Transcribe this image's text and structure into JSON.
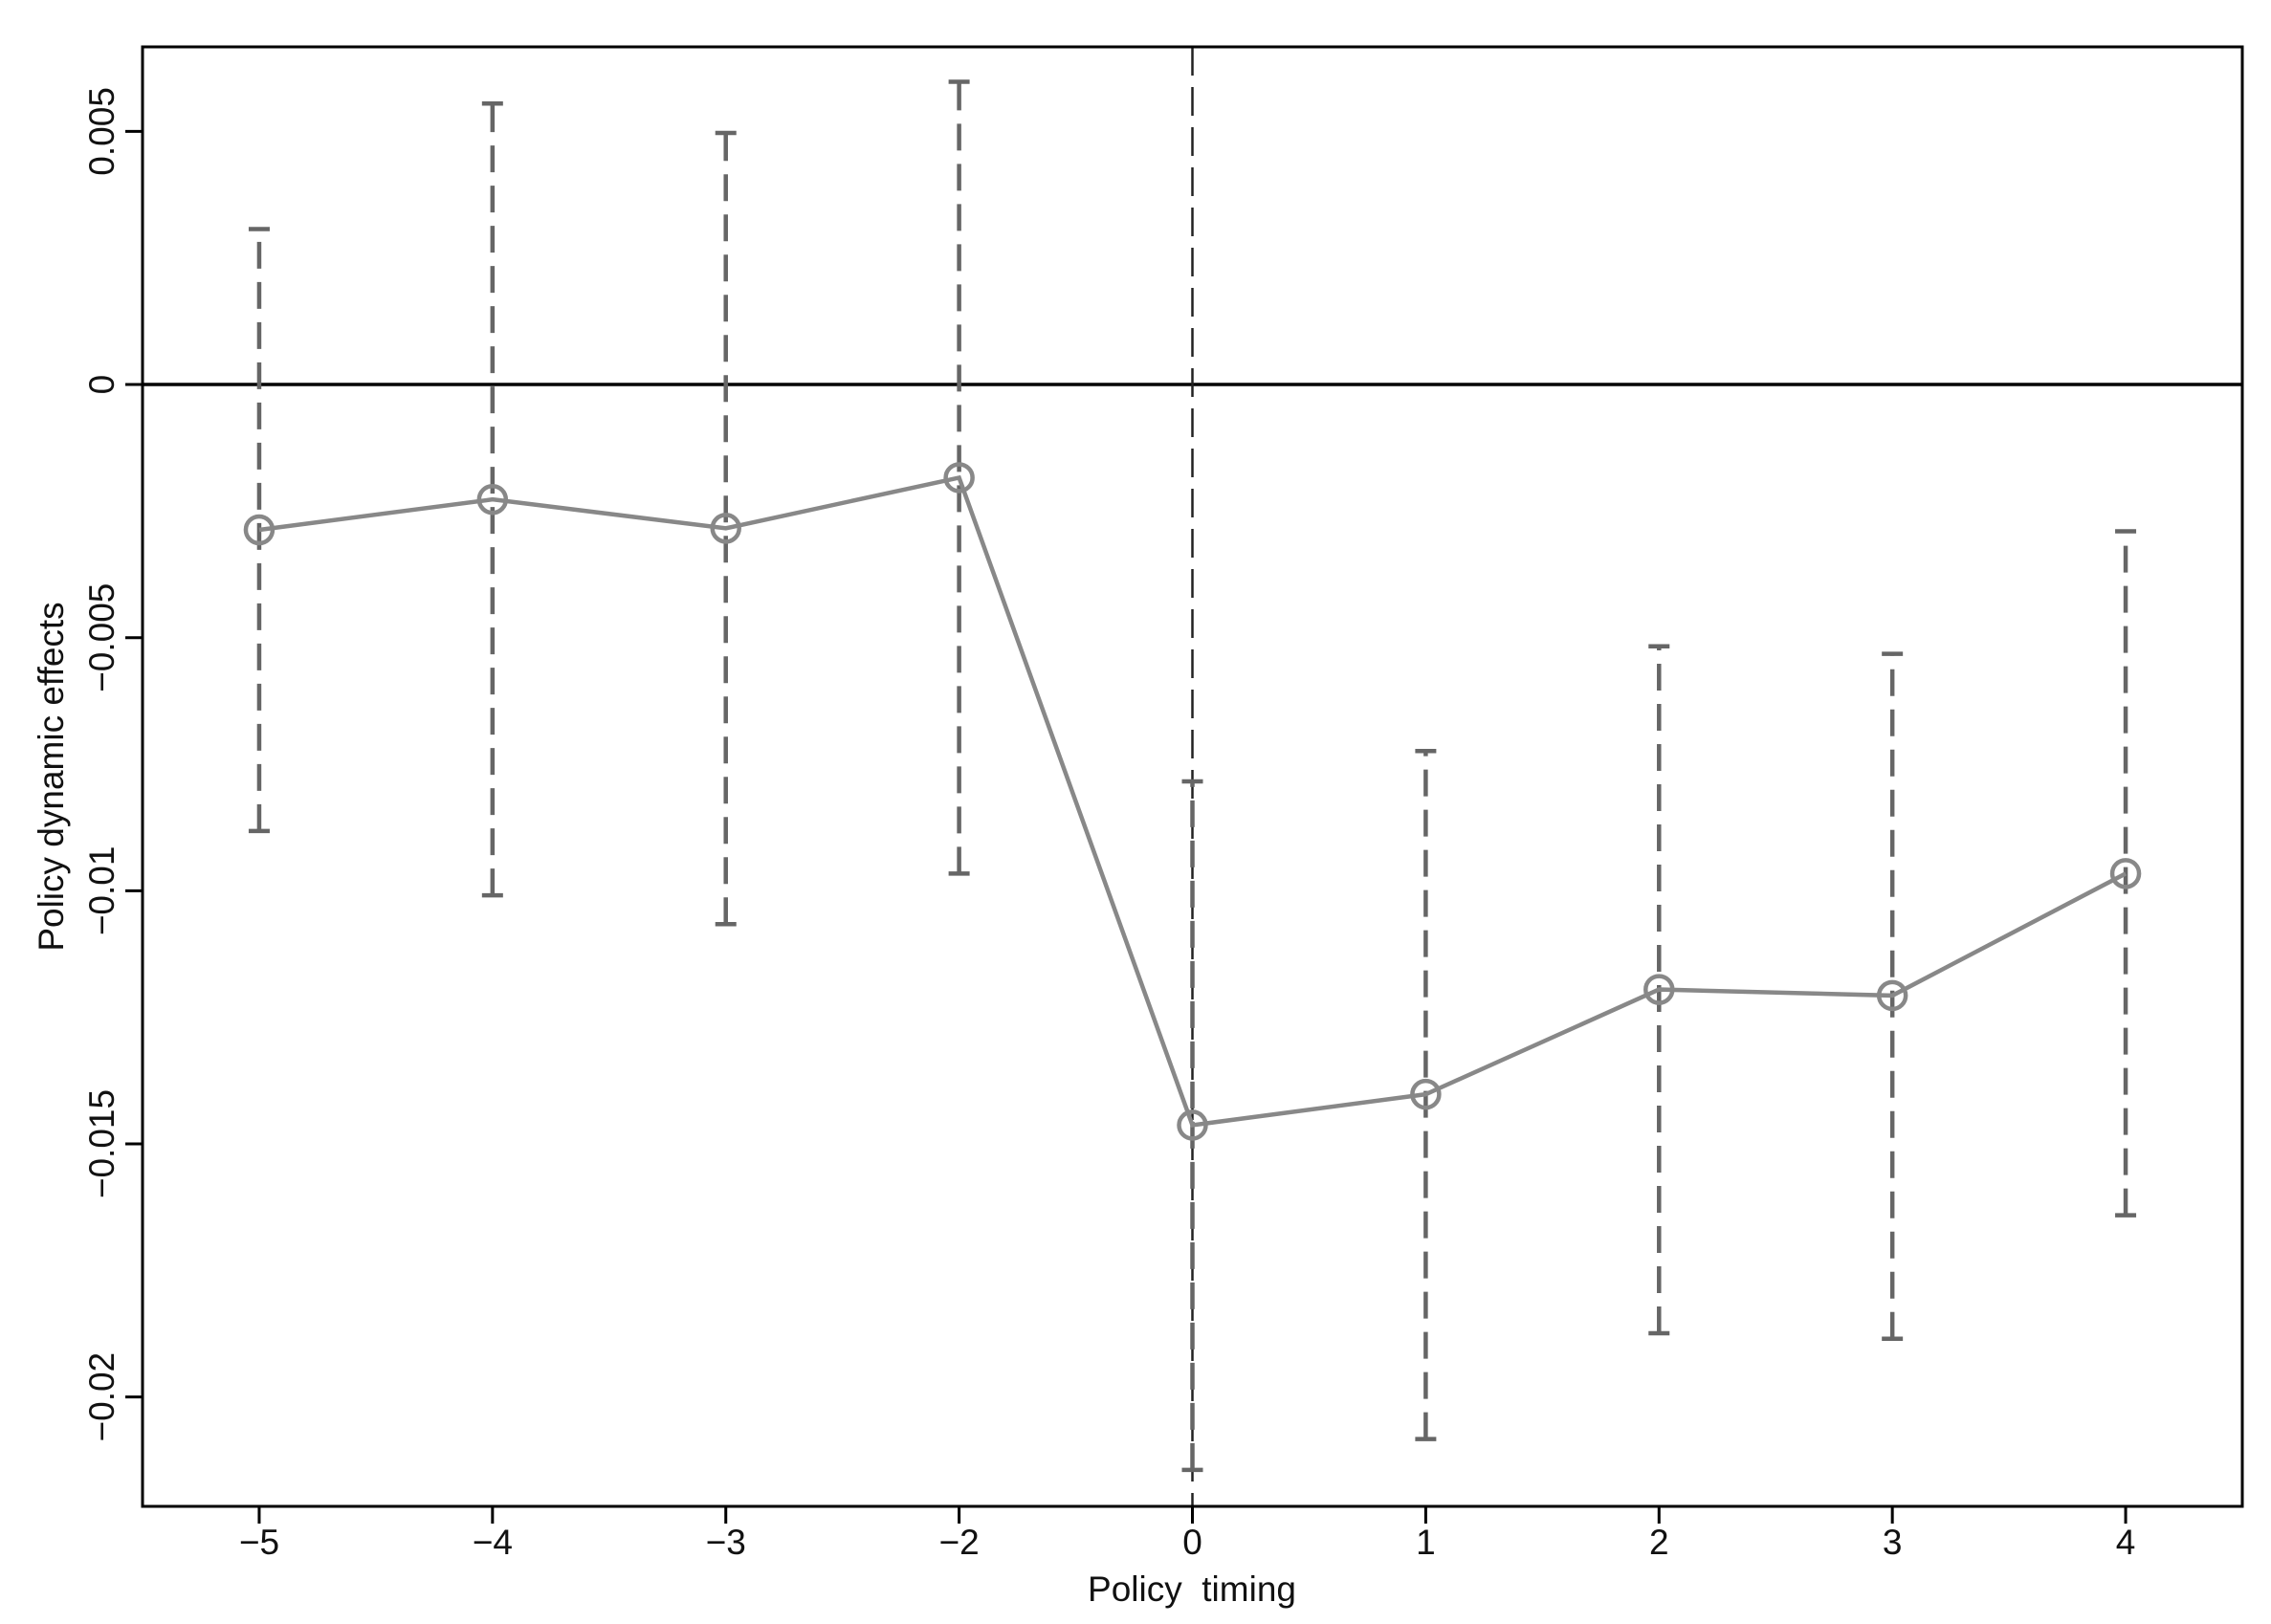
{
  "chart_data": {
    "type": "line",
    "x_label": "Policy  timing",
    "y_label": "Policy dynamic effects",
    "categories": [
      "−5",
      "−4",
      "−3",
      "−2",
      "0",
      "1",
      "2",
      "3",
      "4"
    ],
    "series": [
      {
        "color": "#888888",
        "error_color": "#666666",
        "values": [
          -0.00287,
          -0.00227,
          -0.00284,
          -0.00184,
          -0.01463,
          -0.01402,
          -0.01195,
          -0.01207,
          -0.00966
        ],
        "lower": [
          -0.00882,
          -0.01009,
          -0.01066,
          -0.00966,
          -0.02144,
          -0.02083,
          -0.01874,
          -0.01885,
          -0.01641
        ],
        "upper": [
          0.00307,
          0.00555,
          0.00497,
          0.00598,
          -0.00784,
          -0.00724,
          -0.00517,
          -0.00532,
          -0.0029
        ]
      }
    ],
    "ylim": [
      -0.02216,
      0.00667
    ],
    "yticks": [
      {
        "value": -0.02,
        "label": "−0.02"
      },
      {
        "value": -0.015,
        "label": "−0.015"
      },
      {
        "value": -0.01,
        "label": "−0.01"
      },
      {
        "value": -0.005,
        "label": "−0.005"
      },
      0,
      0.005
    ],
    "hline": 0,
    "vline": "0",
    "grid": false
  }
}
